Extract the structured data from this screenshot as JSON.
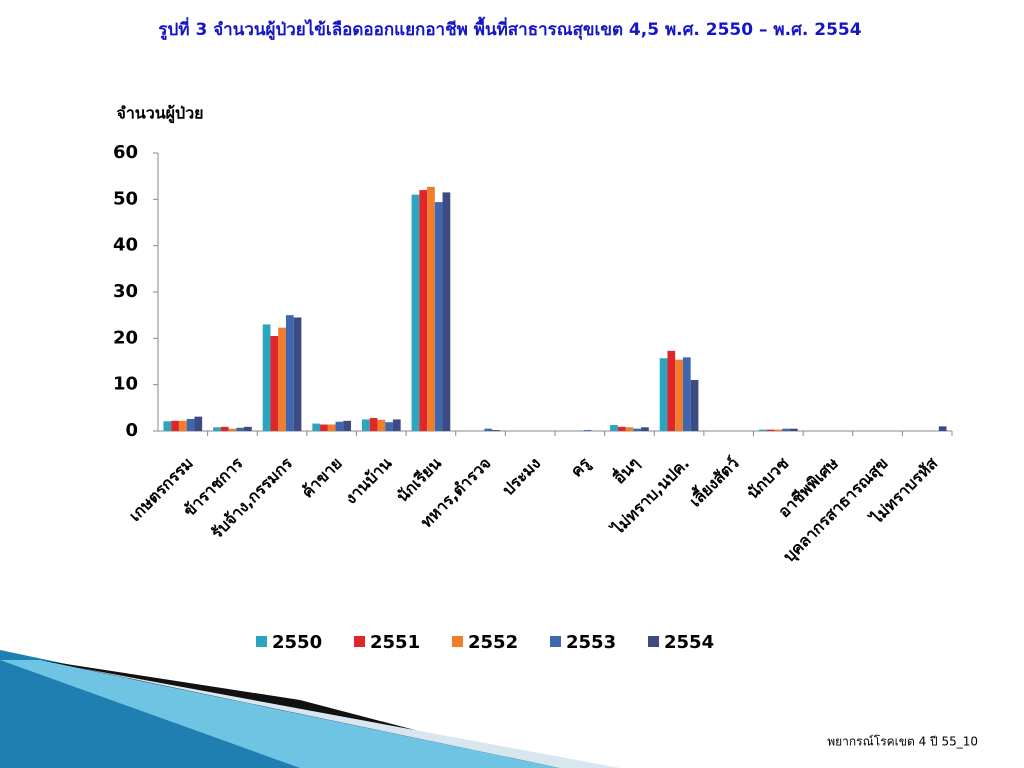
{
  "chart_data": {
    "type": "bar",
    "title": "รูปที่ 3 จำนวนผู้ป่วยไข้เลือดออกแยกอาชีพ พื้นที่สาธารณสุขเขต 4,5 พ.ศ. 2550 – พ.ศ. 2554",
    "y_label": "จำนวนผู้ป่วย",
    "categories": [
      "เกษตรกรรม",
      "ข้าราชการ",
      "รับจ้าง,กรรมกร",
      "ค้าขาย",
      "งานบ้าน",
      "นักเรียน",
      "ทหาร,ตำรวจ",
      "ประมง",
      "ครู",
      "อื่นๆ",
      "ไม่ทราบ,นปค.",
      "เลี้ยงสัตว์",
      "นักบวช",
      "อาชีพพิเศษ",
      "บุคลากรสาธารณสุข",
      "ไม่ทราบรหัส"
    ],
    "series": [
      {
        "name": "2550",
        "color": "#2ca6c0",
        "values": [
          2.1,
          0.8,
          23,
          1.6,
          2.5,
          51,
          0,
          0,
          0,
          1.3,
          15.7,
          0,
          0.3,
          0,
          0,
          0
        ]
      },
      {
        "name": "2551",
        "color": "#e0262b",
        "values": [
          2.2,
          0.9,
          20.5,
          1.4,
          2.8,
          52,
          0,
          0,
          0,
          0.9,
          17.3,
          0,
          0.3,
          0,
          0,
          0
        ]
      },
      {
        "name": "2552",
        "color": "#f07c2c",
        "values": [
          2.2,
          0.5,
          22.3,
          1.4,
          2.4,
          52.7,
          0,
          0,
          0,
          0.8,
          15.4,
          0,
          0.3,
          0,
          0,
          0
        ]
      },
      {
        "name": "2553",
        "color": "#3d68b0",
        "values": [
          2.6,
          0.7,
          25,
          2.0,
          1.9,
          49.4,
          0.5,
          0,
          0.2,
          0.5,
          15.9,
          0,
          0.5,
          0,
          0,
          0
        ]
      },
      {
        "name": "2554",
        "color": "#3f4a82",
        "values": [
          3.1,
          0.9,
          24.5,
          2.2,
          2.5,
          51.5,
          0.2,
          0,
          0,
          0.8,
          11,
          0,
          0.5,
          0,
          0,
          1
        ]
      }
    ],
    "ylim": [
      0,
      60
    ],
    "yticks": [
      0,
      10,
      20,
      30,
      40,
      50,
      60
    ],
    "grid": false,
    "legend": "bottom"
  },
  "footer": "พยากรณ์โรคเขต 4 ปี 55_10"
}
